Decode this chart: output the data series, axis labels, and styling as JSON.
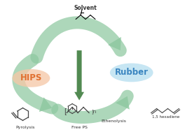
{
  "bg_color": "#ffffff",
  "arrow_fill": "#8ec8a0",
  "arrow_dark": "#3a7a3a",
  "arrow_alpha": 0.72,
  "hips_fill": "#f5c8a8",
  "hips_text": "#e07030",
  "rubber_fill": "#b8dff0",
  "rubber_text": "#3a85c0",
  "text_dark": "#333333",
  "label_solvent": "Solvent",
  "label_hips": "HIPS",
  "label_rubber": "Rubber",
  "label_pyrolysis": "Pyrolysis",
  "label_ethenolysis": "Ethenolysis",
  "label_freeps": "Free PS",
  "label_hexadiene": "1,5 hexadiene",
  "figw": 2.64,
  "figh": 1.89,
  "dpi": 100
}
